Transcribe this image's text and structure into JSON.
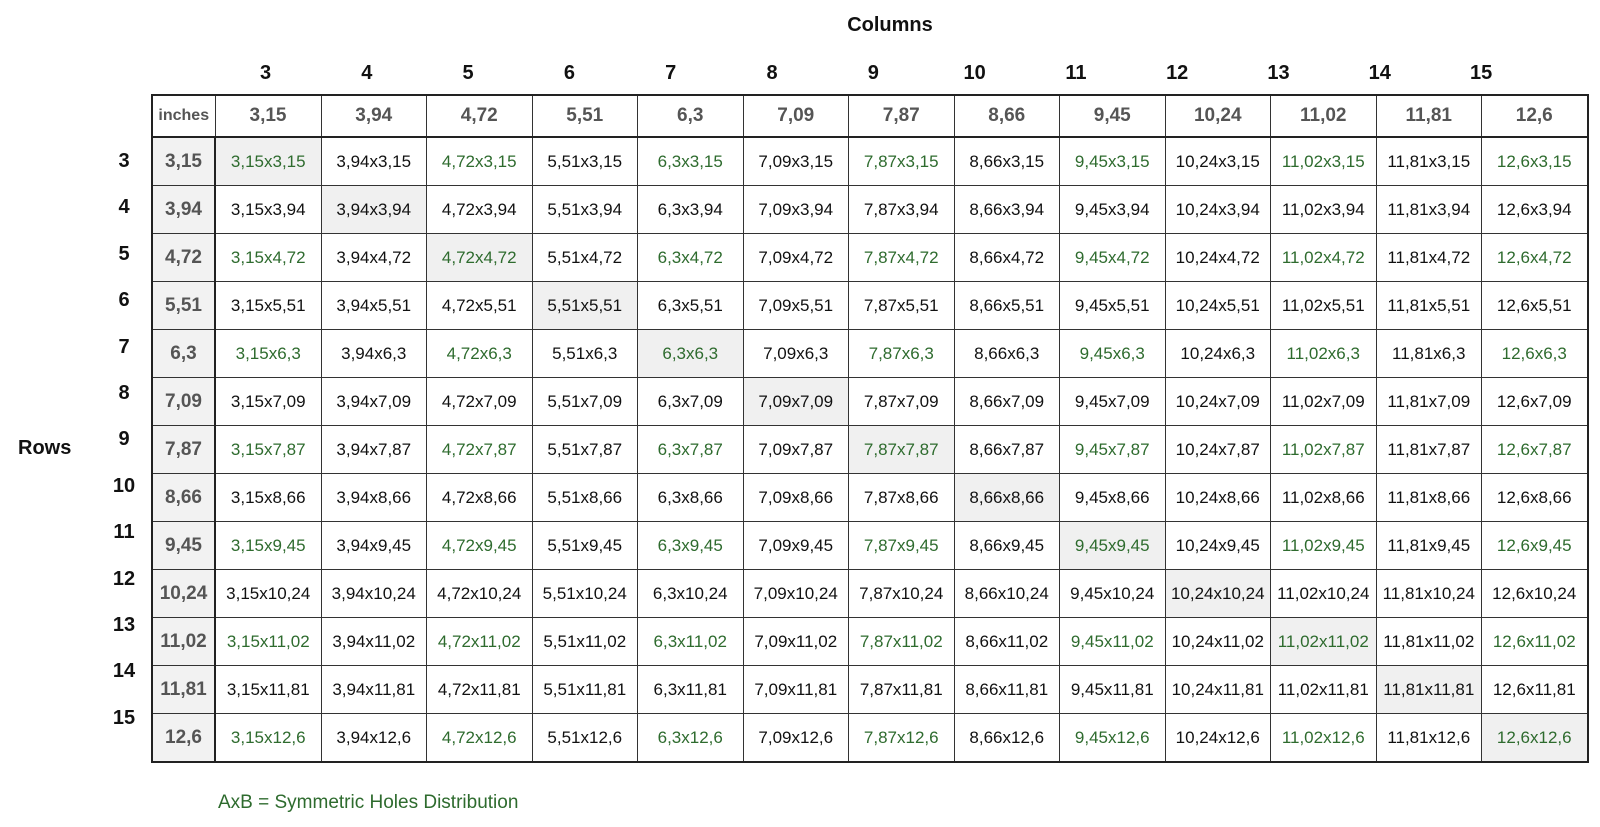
{
  "titles": {
    "columns": "Columns",
    "rows": "Rows"
  },
  "corner_label": "inches",
  "column_numbers": [
    "3",
    "4",
    "5",
    "6",
    "7",
    "8",
    "9",
    "10",
    "11",
    "12",
    "13",
    "14",
    "15"
  ],
  "row_numbers": [
    "3",
    "4",
    "5",
    "6",
    "7",
    "8",
    "9",
    "10",
    "11",
    "12",
    "13",
    "14",
    "15"
  ],
  "inch_values": [
    "3,15",
    "3,94",
    "4,72",
    "5,51",
    "6,3",
    "7,09",
    "7,87",
    "8,66",
    "9,45",
    "10,24",
    "11,02",
    "11,81",
    "12,6"
  ],
  "symmetric_numbers": [
    3,
    5,
    7,
    9,
    11,
    13,
    15
  ],
  "legend": "AxB = Symmetric Holes Distribution",
  "colors": {
    "symmetric": "#2e6b2e",
    "diagonal_bg": "#f0f0f0",
    "inch_bg": "#f2f2f2"
  }
}
